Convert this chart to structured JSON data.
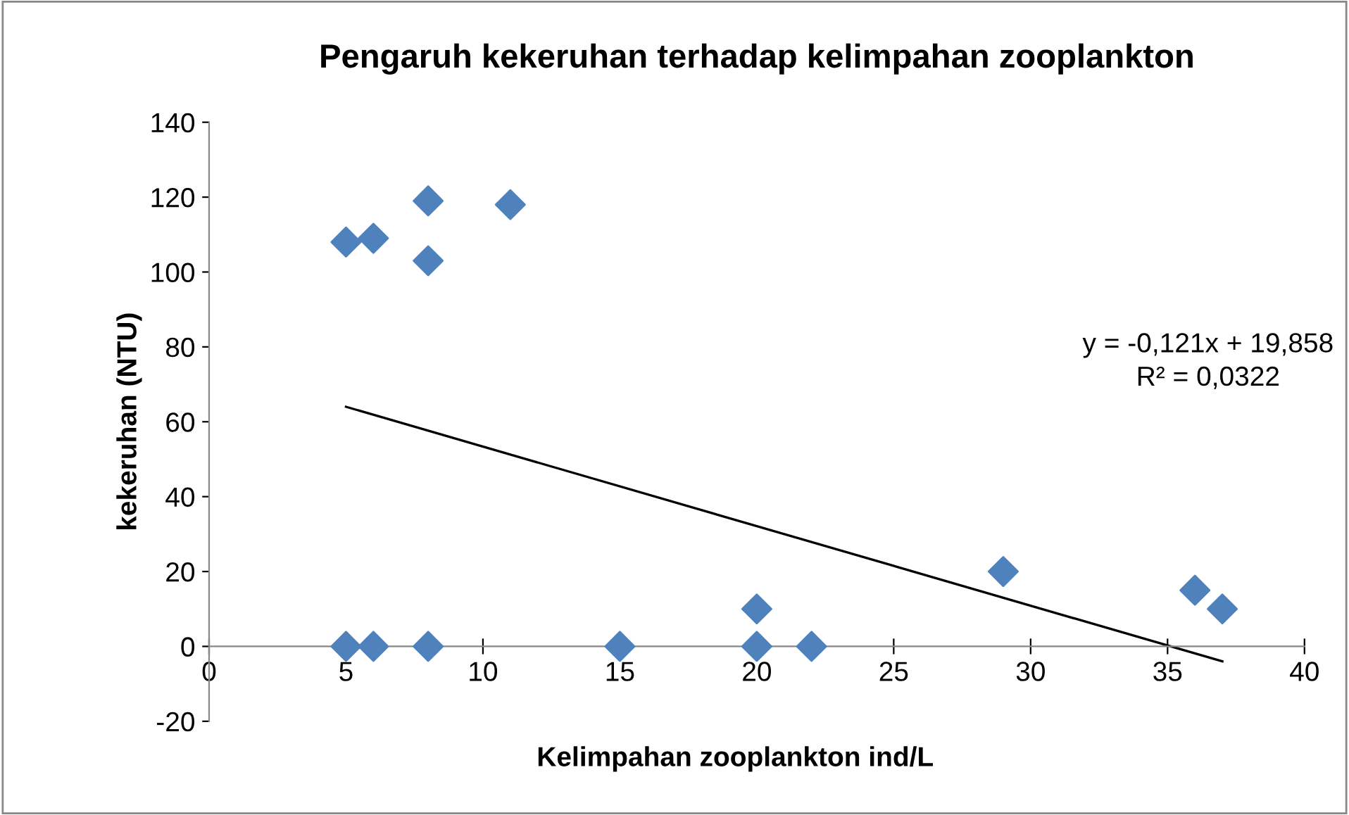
{
  "chart_data": {
    "type": "scatter",
    "title": "Pengaruh kekeruhan terhadap kelimpahan zooplankton",
    "xlabel": "Kelimpahan zooplankton ind/L",
    "ylabel": "kekeruhan (NTU)",
    "series": [
      {
        "type": "scatter",
        "color": "#4f81bd",
        "marker": "diamond",
        "x": [
          5,
          6,
          8,
          8,
          11,
          5,
          6,
          8,
          15,
          20,
          22,
          20,
          29,
          36,
          37
        ],
        "values": [
          108,
          109,
          119,
          103,
          118,
          0,
          0,
          0,
          0,
          0,
          0,
          10,
          20,
          15,
          10
        ]
      },
      {
        "type": "line",
        "color": "#000000",
        "marker": "none",
        "line_style": "solid",
        "x": [
          5,
          37
        ],
        "values": [
          64,
          -4
        ]
      }
    ],
    "xlim": [
      0,
      40
    ],
    "xticks": [
      0,
      5,
      10,
      15,
      20,
      25,
      30,
      35,
      40
    ],
    "ylim": [
      -20,
      140
    ],
    "yticks": [
      -20,
      0,
      20,
      40,
      60,
      80,
      100,
      120,
      140
    ],
    "grid": false,
    "legend": false,
    "annotations": [
      "y = -0,121x + 19,858\nR² = 0,0322"
    ]
  }
}
